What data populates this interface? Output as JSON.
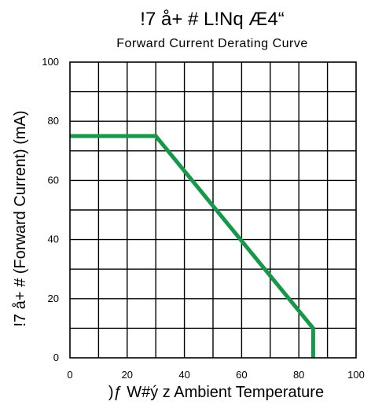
{
  "chart_data": {
    "type": "line",
    "title": "!7 å+ # L!Nq Æ4“",
    "subtitle": "Forward Current Derating Curve",
    "xlabel": ")ƒ W#ý z Ambient Temperature",
    "ylabel": "!7 å+ # (Forward Current) (mA)",
    "xlim": [
      0,
      100
    ],
    "ylim": [
      0,
      100
    ],
    "xticks": [
      "0",
      "20",
      "40",
      "60",
      "80",
      "100"
    ],
    "yticks": [
      "0",
      "20",
      "40",
      "60",
      "80",
      "100"
    ],
    "grid": true,
    "x_grid_step": 10,
    "y_grid_step": 10,
    "series": [
      {
        "color": "#139947",
        "x": [
          0,
          30,
          85,
          85
        ],
        "y": [
          75,
          75,
          10,
          0
        ]
      }
    ]
  }
}
